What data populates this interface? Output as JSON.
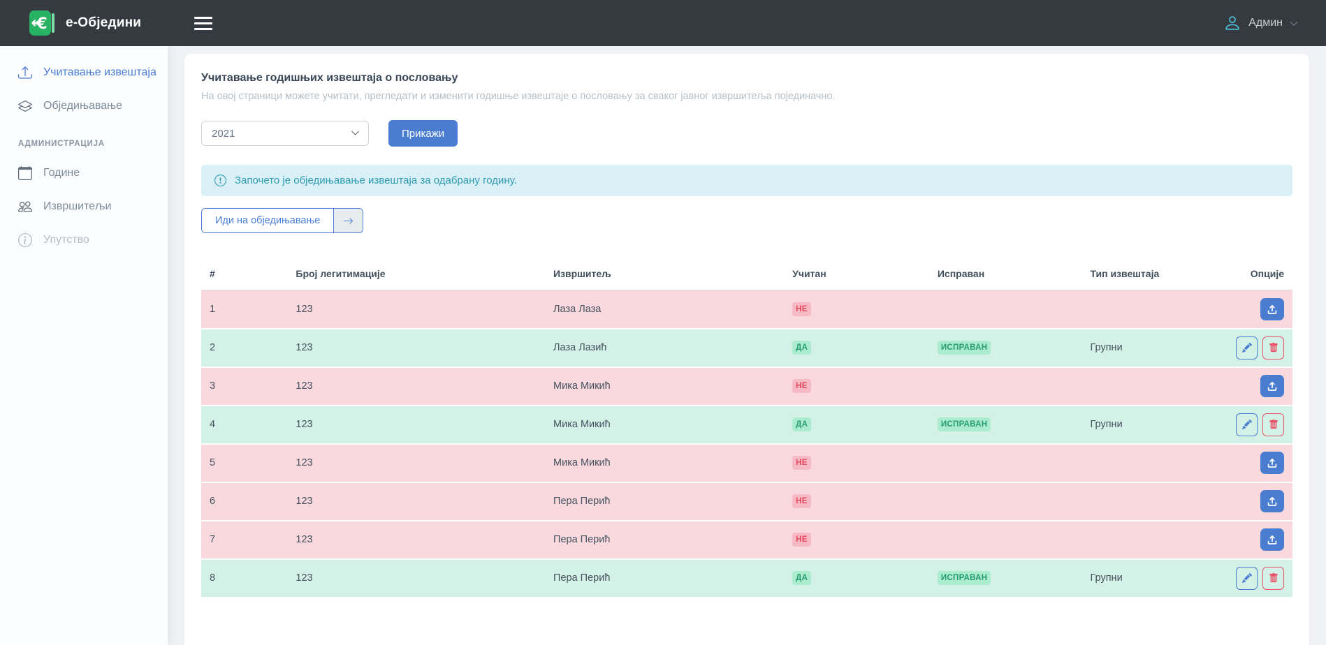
{
  "navbar": {
    "brand": "е-Обједини",
    "user_label": "Админ"
  },
  "sidebar": {
    "items": [
      {
        "label": "Учитавање извештаја",
        "active": true
      },
      {
        "label": "Обједињавање",
        "active": false
      }
    ],
    "section_label": "АДМИНИСТРАЦИЈА",
    "admin_items": [
      {
        "label": "Године"
      },
      {
        "label": "Извршитељи"
      },
      {
        "label": "Упутство"
      }
    ]
  },
  "page": {
    "title": "Учитавање извештаја"
  },
  "card": {
    "heading": "Учитавање годишњих извештаја о пословању",
    "description": "На овој страници можете учитати, прегледати и изменити годишње извештаје о пословању за сваког јавног извршитеља појединачно.",
    "year_selected": "2021",
    "show_button": "Прикажи",
    "alert_text": "Започето је обједињавање извештаја за одабрану годину.",
    "go_button_label": "Иди на обједињавање",
    "go_button_arrow": "→"
  },
  "table": {
    "headers": [
      "#",
      "Број легитимације",
      "Извршитељ",
      "Учитан",
      "Исправан",
      "Тип извештаја",
      "Опције"
    ],
    "rows": [
      {
        "num": "1",
        "id_number": "123",
        "executor": "Лаза Лаза",
        "loaded": "НЕ",
        "valid": "",
        "type": "",
        "status": "error",
        "actions": [
          "upload"
        ]
      },
      {
        "num": "2",
        "id_number": "123",
        "executor": "Лаза Лазић",
        "loaded": "ДА",
        "valid": "ИСПРАВАН",
        "type": "Групни",
        "status": "ok",
        "actions": [
          "edit",
          "delete"
        ]
      },
      {
        "num": "3",
        "id_number": "123",
        "executor": "Мика Микић",
        "loaded": "НЕ",
        "valid": "",
        "type": "",
        "status": "error",
        "actions": [
          "upload"
        ]
      },
      {
        "num": "4",
        "id_number": "123",
        "executor": "Мика Микић",
        "loaded": "ДА",
        "valid": "ИСПРАВАН",
        "type": "Групни",
        "status": "ok",
        "actions": [
          "edit",
          "delete"
        ]
      },
      {
        "num": "5",
        "id_number": "123",
        "executor": "Мика Микић",
        "loaded": "НЕ",
        "valid": "",
        "type": "",
        "status": "error",
        "actions": [
          "upload"
        ]
      },
      {
        "num": "6",
        "id_number": "123",
        "executor": "Пера Перић",
        "loaded": "НЕ",
        "valid": "",
        "type": "",
        "status": "error",
        "actions": [
          "upload"
        ]
      },
      {
        "num": "7",
        "id_number": "123",
        "executor": "Пера Перић",
        "loaded": "НЕ",
        "valid": "",
        "type": "",
        "status": "error",
        "actions": [
          "upload"
        ]
      },
      {
        "num": "8",
        "id_number": "123",
        "executor": "Пера Перић",
        "loaded": "ДА",
        "valid": "ИСПРАВАН",
        "type": "Групни",
        "status": "ok",
        "actions": [
          "edit",
          "delete"
        ]
      }
    ]
  },
  "colors": {
    "navbar_bg": "#343a40",
    "brand_green": "#27b264",
    "accent_blue": "#4a7cd0",
    "alert_bg": "#d9f0f7",
    "alert_text": "#2e9ab2",
    "row_error_bg": "#f9d9de",
    "row_ok_bg": "#d3f1e6",
    "badge_error_bg": "#f7b9c4",
    "badge_error_text": "#e2485e",
    "badge_ok_bg": "#abeccf",
    "badge_ok_text": "#269b72"
  },
  "icons": {
    "brand": "euro-arrow-logo",
    "nav": [
      "hamburger-icon",
      "person-icon",
      "chevron-down-icon"
    ],
    "sidebar": [
      "upload-icon",
      "layers-icon",
      "calendar-icon",
      "people-icon",
      "info-circle-icon"
    ],
    "actions": [
      "upload-icon",
      "pencil-icon",
      "trash-icon",
      "arrow-right-icon"
    ]
  }
}
